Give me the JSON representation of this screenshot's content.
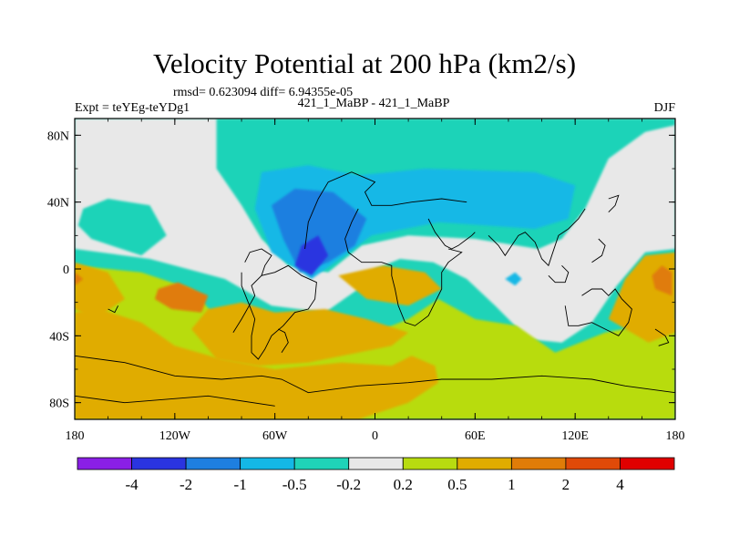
{
  "chart_data": {
    "type": "heatmap",
    "title": "Velocity Potential at 200 hPa (km2/s)",
    "stats_text": "rmsd= 0.623094 diff= 6.94355e-05",
    "experiment": "Expt = teYEg-teYDg1",
    "comparison": "421_1_MaBP - 421_1_MaBP",
    "season": "DJF",
    "x_ticks": [
      "180",
      "120W",
      "60W",
      "0",
      "60E",
      "120E",
      "180"
    ],
    "y_ticks": [
      "80N",
      "40N",
      "0",
      "40S",
      "80S"
    ],
    "xlim": [
      -180,
      180
    ],
    "ylim": [
      -90,
      90
    ],
    "colorbar": {
      "labels": [
        "-4",
        "-2",
        "-1",
        "-0.5",
        "-0.2",
        "0.2",
        "0.5",
        "1",
        "2",
        "4"
      ],
      "colors": [
        "#8a1fe6",
        "#2a34e0",
        "#1e7fe0",
        "#14b8e6",
        "#1fd3b8",
        "#e8e8e8",
        "#b8dc10",
        "#e0ac00",
        "#e07c08",
        "#e04a08",
        "#e00000"
      ]
    },
    "field_regions": [
      {
        "level": 4,
        "poly": [
          [
            -180,
            -90
          ],
          [
            180,
            -90
          ],
          [
            180,
            90
          ],
          [
            -180,
            90
          ]
        ]
      },
      {
        "level": 5,
        "poly": [
          [
            -180,
            90
          ],
          [
            -180,
            12
          ],
          [
            -135,
            6
          ],
          [
            -90,
            -6
          ],
          [
            -62,
            -22
          ],
          [
            -30,
            -26
          ],
          [
            -10,
            -12
          ],
          [
            0,
            0
          ],
          [
            15,
            6
          ],
          [
            35,
            4
          ],
          [
            55,
            -6
          ],
          [
            72,
            -22
          ],
          [
            92,
            -42
          ],
          [
            112,
            -44
          ],
          [
            130,
            -32
          ],
          [
            145,
            -10
          ],
          [
            162,
            10
          ],
          [
            180,
            12
          ],
          [
            180,
            90
          ]
        ]
      },
      {
        "level": 4,
        "poly": [
          [
            -95,
            90
          ],
          [
            -95,
            60
          ],
          [
            -80,
            38
          ],
          [
            -68,
            18
          ],
          [
            -52,
            2
          ],
          [
            -28,
            -2
          ],
          [
            -8,
            14
          ],
          [
            20,
            20
          ],
          [
            60,
            18
          ],
          [
            98,
            12
          ],
          [
            112,
            18
          ],
          [
            126,
            36
          ],
          [
            140,
            66
          ],
          [
            162,
            82
          ],
          [
            180,
            86
          ],
          [
            180,
            90
          ]
        ]
      },
      {
        "level": 4,
        "poly": [
          [
            -178,
            26
          ],
          [
            -170,
            18
          ],
          [
            -140,
            8
          ],
          [
            -125,
            20
          ],
          [
            -135,
            38
          ],
          [
            -160,
            42
          ],
          [
            -175,
            36
          ]
        ]
      },
      {
        "level": 3,
        "poly": [
          [
            -68,
            58
          ],
          [
            -72,
            36
          ],
          [
            -62,
            10
          ],
          [
            -38,
            -6
          ],
          [
            -18,
            8
          ],
          [
            -2,
            20
          ],
          [
            38,
            28
          ],
          [
            96,
            24
          ],
          [
            116,
            30
          ],
          [
            120,
            50
          ],
          [
            96,
            58
          ],
          [
            30,
            60
          ],
          [
            -10,
            56
          ],
          [
            -40,
            62
          ]
        ]
      },
      {
        "level": 3,
        "poly": [
          [
            78,
            -6
          ],
          [
            84,
            -2
          ],
          [
            88,
            -6
          ],
          [
            84,
            -10
          ]
        ]
      },
      {
        "level": 2,
        "poly": [
          [
            -62,
            38
          ],
          [
            -55,
            18
          ],
          [
            -45,
            -2
          ],
          [
            -28,
            4
          ],
          [
            -12,
            14
          ],
          [
            -5,
            30
          ],
          [
            -25,
            46
          ],
          [
            -48,
            48
          ]
        ]
      },
      {
        "level": 1,
        "poly": [
          [
            -48,
            2
          ],
          [
            -38,
            -4
          ],
          [
            -28,
            8
          ],
          [
            -34,
            20
          ],
          [
            -44,
            14
          ]
        ]
      },
      {
        "level": 6,
        "poly": [
          [
            -180,
            2
          ],
          [
            -140,
            -2
          ],
          [
            -110,
            -12
          ],
          [
            -96,
            -28
          ],
          [
            -90,
            -48
          ],
          [
            -60,
            -44
          ],
          [
            -24,
            -42
          ],
          [
            0,
            -38
          ],
          [
            20,
            -30
          ],
          [
            38,
            -18
          ],
          [
            60,
            -30
          ],
          [
            85,
            -34
          ],
          [
            108,
            -50
          ],
          [
            138,
            -38
          ],
          [
            180,
            -30
          ],
          [
            180,
            -90
          ],
          [
            -180,
            -90
          ]
        ]
      },
      {
        "level": 7,
        "poly": [
          [
            -180,
            -90
          ],
          [
            -180,
            -26
          ],
          [
            -165,
            -24
          ],
          [
            -140,
            -32
          ],
          [
            -120,
            -46
          ],
          [
            -92,
            -54
          ],
          [
            -60,
            -60
          ],
          [
            -20,
            -56
          ],
          [
            10,
            -58
          ],
          [
            22,
            -52
          ],
          [
            36,
            -58
          ],
          [
            38,
            -68
          ],
          [
            20,
            -80
          ],
          [
            -10,
            -90
          ]
        ]
      },
      {
        "level": 7,
        "poly": [
          [
            -110,
            -36
          ],
          [
            -95,
            -54
          ],
          [
            -70,
            -58
          ],
          [
            -40,
            -56
          ],
          [
            -10,
            -50
          ],
          [
            10,
            -46
          ],
          [
            20,
            -38
          ],
          [
            -5,
            -30
          ],
          [
            -30,
            -24
          ],
          [
            -60,
            -26
          ],
          [
            -80,
            -20
          ],
          [
            -100,
            -24
          ]
        ]
      },
      {
        "level": 7,
        "poly": [
          [
            -180,
            4
          ],
          [
            -160,
            -2
          ],
          [
            -150,
            -18
          ],
          [
            -168,
            -30
          ],
          [
            -180,
            -24
          ]
        ]
      },
      {
        "level": 7,
        "poly": [
          [
            -22,
            -4
          ],
          [
            5,
            2
          ],
          [
            30,
            -2
          ],
          [
            40,
            -12
          ],
          [
            20,
            -22
          ],
          [
            -5,
            -18
          ]
        ]
      },
      {
        "level": 7,
        "poly": [
          [
            140,
            -30
          ],
          [
            150,
            -6
          ],
          [
            162,
            8
          ],
          [
            180,
            10
          ],
          [
            180,
            -38
          ],
          [
            164,
            -44
          ]
        ]
      },
      {
        "level": 8,
        "poly": [
          [
            -130,
            -12
          ],
          [
            -118,
            -8
          ],
          [
            -100,
            -16
          ],
          [
            -104,
            -26
          ],
          [
            -122,
            -24
          ],
          [
            -132,
            -18
          ]
        ]
      },
      {
        "level": 8,
        "poly": [
          [
            -180,
            -2
          ],
          [
            -175,
            -6
          ],
          [
            -180,
            -10
          ]
        ]
      },
      {
        "level": 8,
        "poly": [
          [
            166,
            -4
          ],
          [
            172,
            2
          ],
          [
            178,
            -2
          ],
          [
            178,
            -16
          ],
          [
            168,
            -12
          ]
        ]
      }
    ],
    "coastlines": [
      [
        [
          -85,
          -38
        ],
        [
          -80,
          -30
        ],
        [
          -72,
          -16
        ],
        [
          -74,
          -10
        ],
        [
          -68,
          -4
        ],
        [
          -60,
          -2
        ],
        [
          -52,
          2
        ],
        [
          -44,
          -4
        ],
        [
          -35,
          -8
        ],
        [
          -36,
          -18
        ],
        [
          -40,
          -24
        ],
        [
          -48,
          -26
        ],
        [
          -55,
          -34
        ],
        [
          -62,
          -40
        ],
        [
          -66,
          -48
        ],
        [
          -70,
          -54
        ],
        [
          -74,
          -50
        ],
        [
          -74,
          -40
        ],
        [
          -72,
          -30
        ],
        [
          -76,
          -20
        ],
        [
          -80,
          -10
        ],
        [
          -80,
          -2
        ]
      ],
      [
        [
          -58,
          -36
        ],
        [
          -54,
          -38
        ],
        [
          -52,
          -44
        ],
        [
          -56,
          -50
        ]
      ],
      [
        [
          -68,
          -4
        ],
        [
          -66,
          2
        ],
        [
          -62,
          8
        ],
        [
          -68,
          12
        ],
        [
          -75,
          10
        ],
        [
          -78,
          4
        ]
      ],
      [
        [
          -42,
          12
        ],
        [
          -40,
          28
        ],
        [
          -34,
          42
        ],
        [
          -28,
          52
        ],
        [
          -14,
          58
        ],
        [
          0,
          52
        ],
        [
          -6,
          46
        ],
        [
          -2,
          38
        ],
        [
          10,
          38
        ],
        [
          22,
          40
        ],
        [
          40,
          42
        ],
        [
          55,
          40
        ]
      ],
      [
        [
          -10,
          36
        ],
        [
          -14,
          28
        ],
        [
          -18,
          18
        ],
        [
          -16,
          10
        ],
        [
          -8,
          4
        ],
        [
          4,
          4
        ],
        [
          10,
          2
        ],
        [
          10,
          -4
        ],
        [
          12,
          -12
        ],
        [
          14,
          -22
        ],
        [
          18,
          -32
        ],
        [
          24,
          -34
        ],
        [
          32,
          -28
        ],
        [
          36,
          -20
        ],
        [
          40,
          -12
        ],
        [
          40,
          -2
        ],
        [
          44,
          4
        ],
        [
          52,
          10
        ],
        [
          44,
          12
        ]
      ],
      [
        [
          32,
          30
        ],
        [
          36,
          22
        ],
        [
          42,
          14
        ],
        [
          46,
          12
        ],
        [
          50,
          14
        ],
        [
          58,
          20
        ],
        [
          60,
          22
        ]
      ],
      [
        [
          68,
          20
        ],
        [
          74,
          14
        ],
        [
          78,
          8
        ],
        [
          82,
          14
        ],
        [
          86,
          20
        ],
        [
          90,
          22
        ],
        [
          96,
          16
        ],
        [
          100,
          6
        ],
        [
          104,
          2
        ],
        [
          106,
          8
        ],
        [
          108,
          14
        ],
        [
          110,
          20
        ],
        [
          116,
          24
        ],
        [
          122,
          30
        ],
        [
          126,
          36
        ]
      ],
      [
        [
          104,
          -4
        ],
        [
          108,
          -8
        ],
        [
          114,
          -8
        ],
        [
          116,
          -2
        ],
        [
          112,
          2
        ]
      ],
      [
        [
          114,
          -22
        ],
        [
          116,
          -34
        ],
        [
          122,
          -34
        ],
        [
          130,
          -32
        ],
        [
          138,
          -36
        ],
        [
          146,
          -40
        ],
        [
          152,
          -32
        ],
        [
          154,
          -24
        ],
        [
          148,
          -18
        ],
        [
          144,
          -12
        ],
        [
          140,
          -16
        ],
        [
          136,
          -12
        ],
        [
          130,
          -12
        ],
        [
          124,
          -16
        ]
      ],
      [
        [
          168,
          -36
        ],
        [
          174,
          -40
        ],
        [
          176,
          -44
        ],
        [
          170,
          -46
        ]
      ],
      [
        [
          140,
          34
        ],
        [
          144,
          38
        ],
        [
          146,
          44
        ],
        [
          140,
          42
        ]
      ],
      [
        [
          -180,
          -52
        ],
        [
          -150,
          -56
        ],
        [
          -120,
          -64
        ],
        [
          -92,
          -66
        ],
        [
          -68,
          -64
        ],
        [
          -56,
          -66
        ],
        [
          -40,
          -74
        ],
        [
          -10,
          -70
        ],
        [
          20,
          -68
        ],
        [
          40,
          -66
        ],
        [
          70,
          -66
        ],
        [
          100,
          -64
        ],
        [
          130,
          -66
        ],
        [
          150,
          -70
        ],
        [
          180,
          -74
        ]
      ],
      [
        [
          -180,
          -76
        ],
        [
          -150,
          -80
        ],
        [
          -100,
          -76
        ],
        [
          -60,
          -82
        ]
      ],
      [
        [
          130,
          4
        ],
        [
          136,
          8
        ],
        [
          138,
          14
        ],
        [
          134,
          18
        ]
      ],
      [
        [
          -160,
          -24
        ],
        [
          -156,
          -26
        ],
        [
          -154,
          -22
        ]
      ]
    ]
  }
}
